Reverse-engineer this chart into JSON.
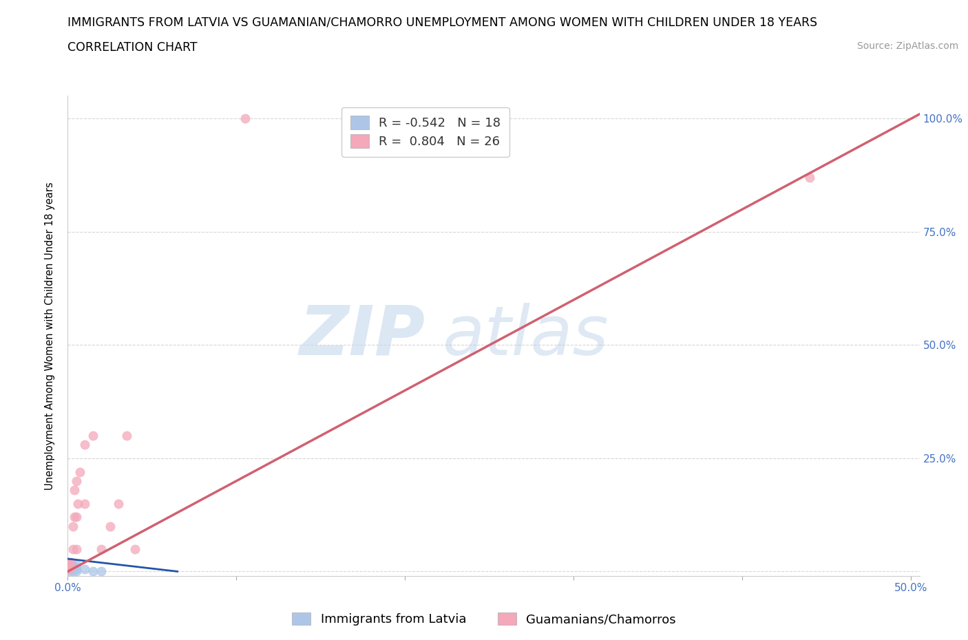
{
  "title_line1": "IMMIGRANTS FROM LATVIA VS GUAMANIAN/CHAMORRO UNEMPLOYMENT AMONG WOMEN WITH CHILDREN UNDER 18 YEARS",
  "title_line2": "CORRELATION CHART",
  "source": "Source: ZipAtlas.com",
  "ylabel": "Unemployment Among Women with Children Under 18 years",
  "xlim": [
    0.0,
    0.505
  ],
  "ylim": [
    -0.01,
    1.05
  ],
  "xticks": [
    0.0,
    0.1,
    0.2,
    0.3,
    0.4,
    0.5
  ],
  "xticklabels": [
    "0.0%",
    "",
    "",
    "",
    "",
    "50.0%"
  ],
  "ytick_positions": [
    0.0,
    0.25,
    0.5,
    0.75,
    1.0
  ],
  "yticklabels_right": [
    "",
    "25.0%",
    "50.0%",
    "75.0%",
    "100.0%"
  ],
  "grid_color": "#cccccc",
  "watermark_zip": "ZIP",
  "watermark_atlas": "atlas",
  "legend_r1": "R = -0.542",
  "legend_n1": "N = 18",
  "legend_r2": "R =  0.804",
  "legend_n2": "N = 26",
  "color_blue": "#adc6e8",
  "color_pink": "#f4a8ba",
  "line_color_blue": "#2255aa",
  "line_color_pink": "#d06070",
  "scatter_blue_x": [
    0.0,
    0.0,
    0.0,
    0.001,
    0.001,
    0.002,
    0.002,
    0.003,
    0.003,
    0.003,
    0.004,
    0.004,
    0.005,
    0.005,
    0.005,
    0.01,
    0.015,
    0.02
  ],
  "scatter_blue_y": [
    0.005,
    0.01,
    0.015,
    0.0,
    0.005,
    0.005,
    0.01,
    0.0,
    0.005,
    0.015,
    0.005,
    0.01,
    0.0,
    0.005,
    0.015,
    0.005,
    0.0,
    0.0
  ],
  "scatter_pink_x": [
    0.0,
    0.0,
    0.0,
    0.001,
    0.001,
    0.002,
    0.002,
    0.003,
    0.003,
    0.004,
    0.004,
    0.005,
    0.005,
    0.005,
    0.006,
    0.007,
    0.01,
    0.01,
    0.015,
    0.02,
    0.025,
    0.03,
    0.035,
    0.04,
    0.105,
    0.44
  ],
  "scatter_pink_y": [
    0.005,
    0.01,
    0.02,
    0.005,
    0.015,
    0.01,
    0.02,
    0.05,
    0.1,
    0.12,
    0.18,
    0.05,
    0.12,
    0.2,
    0.15,
    0.22,
    0.15,
    0.28,
    0.3,
    0.05,
    0.1,
    0.15,
    0.3,
    0.05,
    1.0,
    0.87
  ],
  "blue_trend_x": [
    0.0,
    0.065
  ],
  "blue_trend_y": [
    0.028,
    0.0
  ],
  "pink_trend_x": [
    -0.01,
    0.505
  ],
  "pink_trend_y": [
    -0.02,
    1.01
  ],
  "title_fontsize": 12.5,
  "axis_label_fontsize": 10.5,
  "tick_fontsize": 11,
  "legend_fontsize": 13,
  "source_fontsize": 10,
  "marker_size": 90,
  "background_color": "#ffffff",
  "tick_color_x": "#4472c4",
  "tick_color_y": "#4472c4",
  "legend_label1": "Immigrants from Latvia",
  "legend_label2": "Guamanians/Chamorros"
}
